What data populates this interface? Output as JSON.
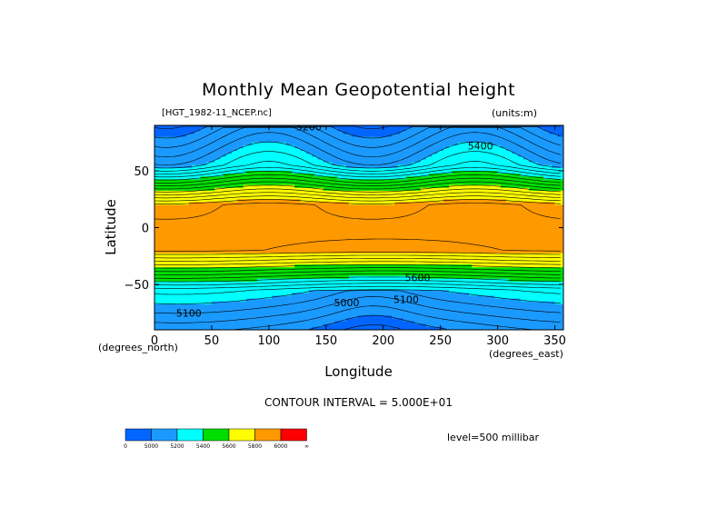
{
  "chart_data": {
    "type": "heatmap",
    "title": "Monthly Mean Geopotential height",
    "file_label": "[HGT_1982-11_NCEP.nc]",
    "units_label": "(units:m)",
    "xlabel": "Longitude",
    "xlabel_units": "(degrees_east)",
    "ylabel": "Latitude",
    "ylabel_units": "(degrees_north)",
    "xlim": [
      0,
      357.5
    ],
    "ylim": [
      -90,
      90
    ],
    "xticks": [
      "0",
      "50",
      "100",
      "150",
      "200",
      "250",
      "300",
      "350"
    ],
    "yticks": [
      "50",
      "0",
      "−50"
    ],
    "contour_interval": "CONTOUR INTERVAL = 5.000E+01",
    "level": "level=500 millibar",
    "contour_labels": [
      {
        "text": "5200",
        "lon": 135,
        "lat": 89
      },
      {
        "text": "5400",
        "lon": 285,
        "lat": 72
      },
      {
        "text": "5600",
        "lon": 230,
        "lat": -44
      },
      {
        "text": "5000",
        "lon": 168,
        "lat": -66
      },
      {
        "text": "5100",
        "lon": 220,
        "lat": -63
      },
      {
        "text": "5100",
        "lon": 30,
        "lat": -75
      }
    ],
    "colorbar": {
      "colors": [
        "#0066ff",
        "#1a9aff",
        "#00ffff",
        "#00dd00",
        "#ffff00",
        "#ff9900",
        "#ff0000"
      ],
      "labels": [
        "0",
        "5000",
        "5200",
        "5400",
        "5600",
        "5800",
        "6000",
        "∞"
      ]
    }
  }
}
